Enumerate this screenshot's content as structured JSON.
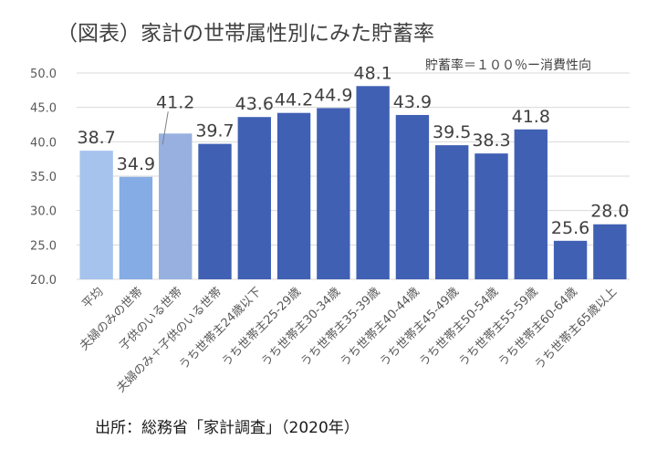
{
  "chart_data": {
    "type": "bar",
    "title": "（図表）家計の世帯属性別にみた貯蓄率",
    "subtitle": "貯蓄率＝１００％ー消費性向",
    "source": "出所：総務省「家計調査」（2020年）",
    "xlabel": "",
    "ylabel": "",
    "ylim": [
      20.0,
      50.0
    ],
    "yticks": [
      "50.0",
      "45.0",
      "40.0",
      "35.0",
      "30.0",
      "25.0",
      "20.0"
    ],
    "grid": true,
    "legend": "none",
    "categories": [
      "平均",
      "夫婦のみの世帯",
      "子供のいる世帯",
      "夫婦のみ＋子供のいる世帯",
      "うち世帯主24歳以下",
      "うち世帯主25-29歳",
      "うち世帯主30-34歳",
      "うち世帯主35-39歳",
      "うち世帯主40-44歳",
      "うち世帯主45-49歳",
      "うち世帯主50-54歳",
      "うち世帯主55-59歳",
      "うち世帯主60-64歳",
      "うち世帯主65歳以上"
    ],
    "values": [
      38.7,
      34.9,
      41.2,
      39.7,
      43.6,
      44.2,
      44.9,
      48.1,
      43.9,
      39.5,
      38.3,
      41.8,
      25.6,
      28.0
    ],
    "labels": [
      "38.7",
      "34.9",
      "41.2",
      "39.7",
      "43.6",
      "44.2",
      "44.9",
      "48.1",
      "43.9",
      "39.5",
      "38.3",
      "41.8",
      "25.6",
      "28.0"
    ],
    "bar_colors": [
      "#a5c3ec",
      "#86ace5",
      "#97b0e0",
      "#4060b4",
      "#4060b4",
      "#4060b4",
      "#4060b4",
      "#4060b4",
      "#4060b4",
      "#4060b4",
      "#4060b4",
      "#4060b4",
      "#4060b4",
      "#4060b4"
    ],
    "colors": {
      "grid": "#d9d9d9",
      "text": "#404040",
      "axis_text": "#595959"
    }
  }
}
